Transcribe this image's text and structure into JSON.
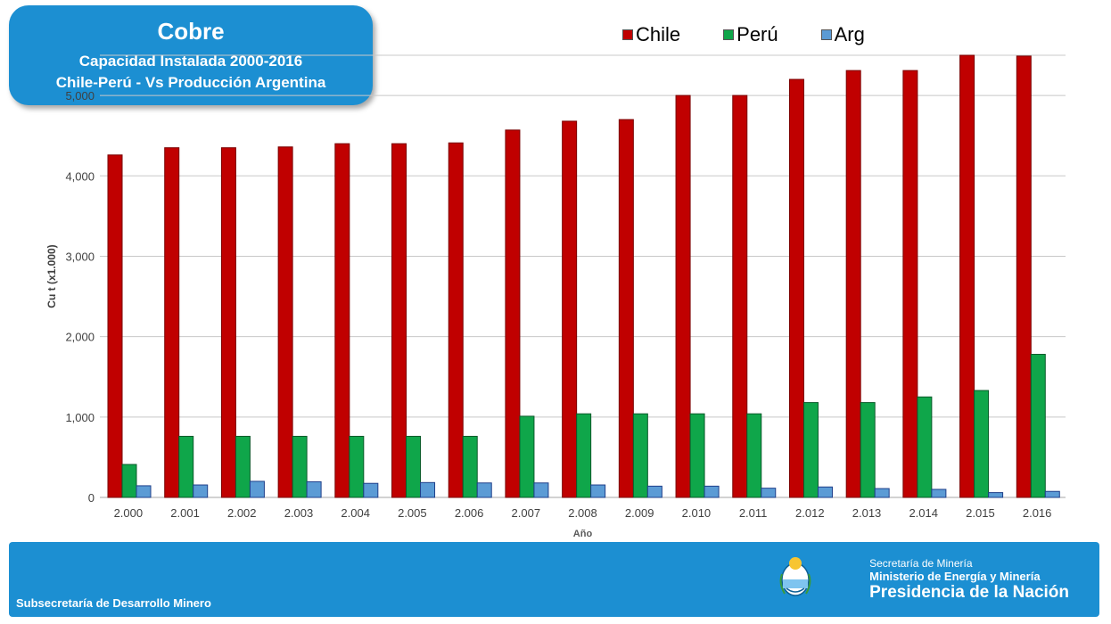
{
  "header": {
    "title": "Cobre",
    "subtitle_line1": "Capacidad Instalada 2000-2016",
    "subtitle_line2": "Chile-Perú  - Vs Producción Argentina"
  },
  "footer": {
    "left_text": "Subsecretaría de Desarrollo Minero",
    "right_line1": "Secretaría de Minería",
    "right_line2": "Ministerio de Energía y Minería",
    "right_line3": "Presidencia de la Nación"
  },
  "colors": {
    "chile": "#c00000",
    "peru": "#0fa64a",
    "arg": "#5b9bd5",
    "brand_blue": "#1c8fd2"
  },
  "chart_data": {
    "type": "bar",
    "xlabel": "Año",
    "ylabel": "Cu t (x1.000)",
    "ylim": [
      0,
      5500
    ],
    "yticks": [
      0,
      1000,
      2000,
      3000,
      4000,
      5000
    ],
    "ytick_labels": [
      "0",
      "1,000",
      "2,000",
      "3,000",
      "4,000",
      "5,000"
    ],
    "grid": true,
    "legend_position": "top",
    "categories": [
      "2.000",
      "2.001",
      "2.002",
      "2.003",
      "2.004",
      "2.005",
      "2.006",
      "2.007",
      "2.008",
      "2.009",
      "2.010",
      "2.011",
      "2.012",
      "2.013",
      "2.014",
      "2.015",
      "2.016"
    ],
    "series": [
      {
        "name": "Chile",
        "values": [
          4260,
          4350,
          4350,
          4360,
          4400,
          4400,
          4410,
          4570,
          4680,
          4700,
          5000,
          5000,
          5200,
          5310,
          5310,
          5500,
          5490
        ]
      },
      {
        "name": "Perú",
        "values": [
          410,
          760,
          760,
          760,
          760,
          760,
          760,
          1010,
          1040,
          1040,
          1040,
          1040,
          1180,
          1180,
          1250,
          1330,
          1780
        ]
      },
      {
        "name": "Arg",
        "values": [
          145,
          155,
          200,
          195,
          175,
          185,
          180,
          180,
          155,
          140,
          140,
          115,
          130,
          110,
          100,
          60,
          75
        ]
      }
    ]
  }
}
